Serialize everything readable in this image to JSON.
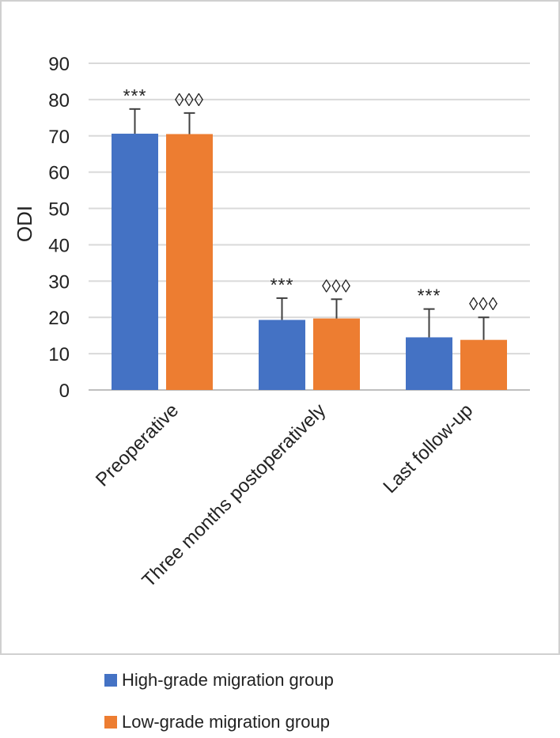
{
  "chart_data": {
    "type": "bar",
    "ylabel": "ODI",
    "xlabel": "",
    "ylim": [
      0,
      90
    ],
    "yticks": [
      0,
      10,
      20,
      30,
      40,
      50,
      60,
      70,
      80,
      90
    ],
    "grid": true,
    "legend_position": "bottom",
    "categories": [
      "Preoperative",
      "Three months postoperatively",
      "Last follow-up"
    ],
    "series": [
      {
        "name": "High-grade migration group",
        "color": "#4472C4",
        "values": [
          70.6,
          19.3,
          14.5
        ],
        "errors": [
          6.8,
          6.0,
          7.8
        ],
        "markers": [
          "***",
          "***",
          "***"
        ]
      },
      {
        "name": "Low-grade migration group",
        "color": "#ED7D31",
        "values": [
          70.5,
          19.7,
          13.8
        ],
        "errors": [
          5.8,
          5.3,
          6.2
        ],
        "markers": [
          "◊◊◊",
          "◊◊◊",
          "◊◊◊"
        ]
      }
    ]
  }
}
